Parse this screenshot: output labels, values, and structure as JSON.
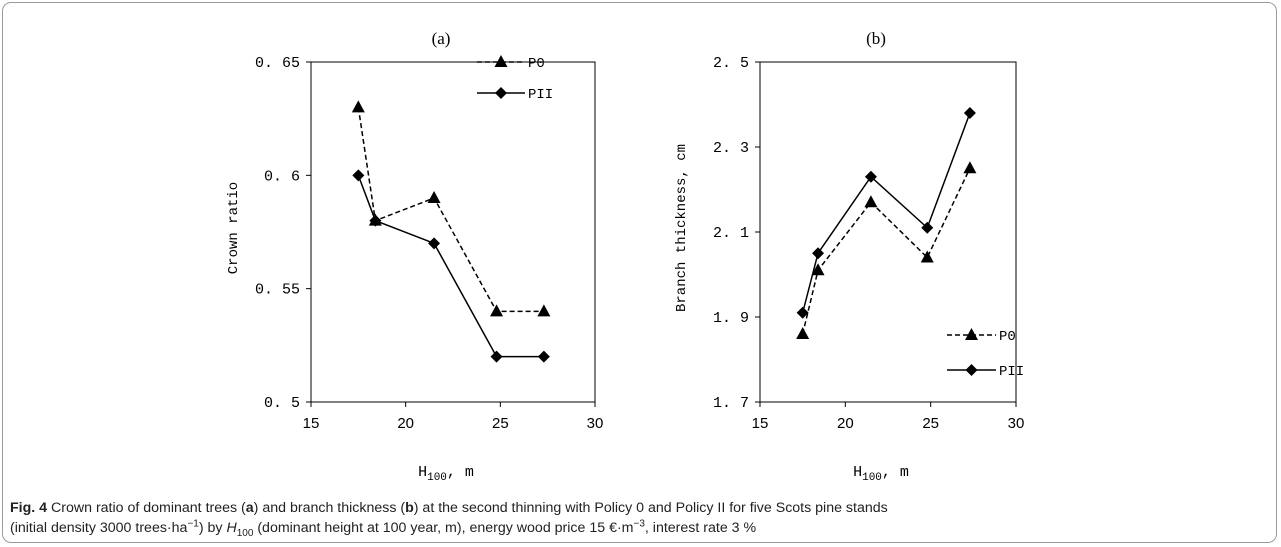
{
  "chart_data": [
    {
      "type": "line",
      "panel_label": "(a)",
      "xlabel": "H100, m",
      "ylabel": "Crown ratio",
      "xlim": [
        15,
        30
      ],
      "ylim": [
        0.5,
        0.65
      ],
      "x_ticks": [
        "15",
        "20",
        "25",
        "30"
      ],
      "y_ticks": [
        "0. 5",
        "0. 55",
        "0. 6",
        "0. 65"
      ],
      "legend_position": "top-right",
      "series": [
        {
          "name": "P0",
          "style": "dashed",
          "marker": "triangle",
          "x": [
            17.5,
            18.4,
            21.5,
            24.8,
            27.3
          ],
          "y": [
            0.63,
            0.58,
            0.59,
            0.54,
            0.54
          ]
        },
        {
          "name": "PII",
          "style": "solid",
          "marker": "diamond",
          "x": [
            17.5,
            18.4,
            21.5,
            24.8,
            27.3
          ],
          "y": [
            0.6,
            0.58,
            0.57,
            0.52,
            0.52
          ]
        }
      ]
    },
    {
      "type": "line",
      "panel_label": "(b)",
      "xlabel": "H100, m",
      "ylabel": "Branch thickness, cm",
      "xlim": [
        15,
        30
      ],
      "ylim": [
        1.7,
        2.5
      ],
      "x_ticks": [
        "15",
        "20",
        "25",
        "30"
      ],
      "y_ticks": [
        "1. 7",
        "1. 9",
        "2. 1",
        "2. 3",
        "2. 5"
      ],
      "legend_position": "bottom-right",
      "series": [
        {
          "name": "P0",
          "style": "dashed",
          "marker": "triangle",
          "x": [
            17.5,
            18.4,
            21.5,
            24.8,
            27.3
          ],
          "y": [
            1.86,
            2.01,
            2.17,
            2.04,
            2.25
          ]
        },
        {
          "name": "PII",
          "style": "solid",
          "marker": "diamond",
          "x": [
            17.5,
            18.4,
            21.5,
            24.8,
            27.3
          ],
          "y": [
            1.91,
            2.05,
            2.23,
            2.11,
            2.38
          ]
        }
      ]
    }
  ],
  "caption": {
    "label": "Fig. 4",
    "t1": " Crown ratio of dominant trees (",
    "a": "a",
    "t2": ") and branch thickness (",
    "b": "b",
    "t3": ") at the second thinning with Policy 0 and Policy II for five Scots pine stands",
    "t4": "(initial density 3000 trees·ha",
    "sup1": "−1",
    "t5": ") by ",
    "h": "H",
    "h_sub": "100",
    "t6": " (dominant height at 100 year, m), energy wood price 15 €·m",
    "sup2": "−3",
    "t7": ", interest rate 3 %"
  }
}
